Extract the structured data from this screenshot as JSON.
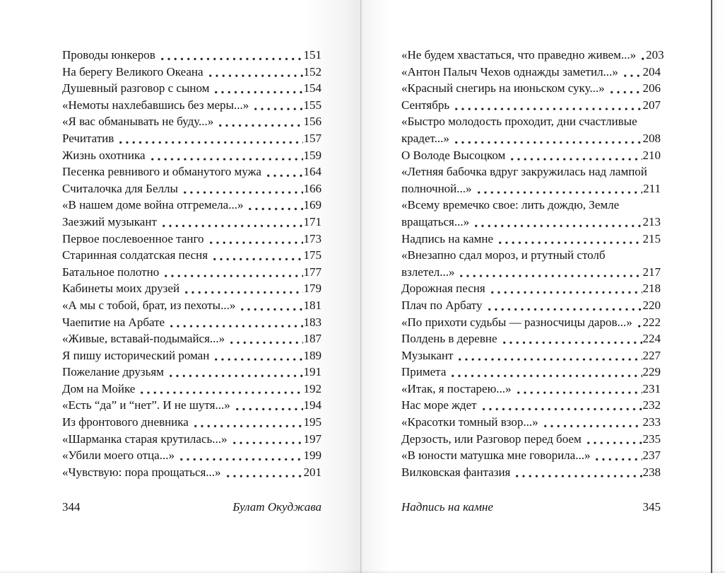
{
  "colors": {
    "page": "#ffffff",
    "text": "#141414",
    "book_edge_line": "#585858"
  },
  "left_page": {
    "entries": [
      {
        "title": "Проводы юнкеров",
        "page": "151"
      },
      {
        "title": "На берегу Великого Океана",
        "page": "152"
      },
      {
        "title": "Душевный разговор с сыном",
        "page": "154"
      },
      {
        "title": "«Немоты нахлебавшись без меры...»",
        "page": "155"
      },
      {
        "title": "«Я вас обманывать не буду...»",
        "page": "156"
      },
      {
        "title": "Речитатив",
        "page": "157"
      },
      {
        "title": "Жизнь охотника",
        "page": "159"
      },
      {
        "title": "Песенка ревнивого и обманутого мужа",
        "page": "164"
      },
      {
        "title": "Считалочка для Беллы",
        "page": "166"
      },
      {
        "title": "«В нашем доме война отгремела...»",
        "page": "169"
      },
      {
        "title": "Заезжий музыкант",
        "page": "171"
      },
      {
        "title": "Первое послевоенное танго",
        "page": "173"
      },
      {
        "title": "Старинная солдатская песня",
        "page": "175"
      },
      {
        "title": "Батальное полотно",
        "page": "177"
      },
      {
        "title": "Кабинеты моих друзей",
        "page": "179"
      },
      {
        "title": "«А мы с тобой, брат, из пехоты...»",
        "page": "181"
      },
      {
        "title": "Чаепитие на Арбате",
        "page": "183"
      },
      {
        "title": "«Живые, вставай-подымайся...»",
        "page": "187"
      },
      {
        "title": "Я пишу исторический роман",
        "page": "189"
      },
      {
        "title": "Пожелание друзьям",
        "page": "191"
      },
      {
        "title": "Дом на Мойке",
        "page": "192"
      },
      {
        "title": "«Есть “да” и “нет”. И не шутя...»",
        "page": "194"
      },
      {
        "title": "Из фронтового дневника",
        "page": "195"
      },
      {
        "title": "«Шарманка старая крутилась...»",
        "page": "197"
      },
      {
        "title": "«Убили моего отца...»",
        "page": "199"
      },
      {
        "title": "«Чувствую: пора прощаться...»",
        "page": "201"
      }
    ],
    "footer": {
      "page_number": "344",
      "running_title": "Булат Окуджава"
    }
  },
  "right_page": {
    "entries": [
      {
        "title": "«Не будем хвастаться, что праведно живем...»",
        "page": "203"
      },
      {
        "title": "«Антон Палыч Чехов однажды заметил...»",
        "page": "204"
      },
      {
        "title": "«Красный снегирь на июньском суку...»",
        "page": "206"
      },
      {
        "title": "Сентябрь",
        "page": "207"
      },
      {
        "title": "«Быстро молодость проходит, дни счастливые",
        "title2": "крадет...»",
        "page": "208"
      },
      {
        "title": "О Володе Высоцком",
        "page": "210"
      },
      {
        "title": "«Летняя бабочка вдруг закружилась над лампой",
        "title2": "полночной...»",
        "page": "211"
      },
      {
        "title": "«Всему времечко свое: лить дождю, Земле",
        "title2": "вращаться...»",
        "page": "213"
      },
      {
        "title": "Надпись на камне",
        "page": "215"
      },
      {
        "title": "«Внезапно сдал мороз, и ртутный столб",
        "title2": "взлетел...»",
        "page": "217"
      },
      {
        "title": "Дорожная песня",
        "page": "218"
      },
      {
        "title": "Плач по Арбату",
        "page": "220"
      },
      {
        "title": "«По прихоти судьбы — разносчицы даров...»",
        "page": "222"
      },
      {
        "title": "Полдень в деревне",
        "page": "224"
      },
      {
        "title": "Музыкант",
        "page": "227"
      },
      {
        "title": "Примета",
        "page": "229"
      },
      {
        "title": "«Итак, я постарею...»",
        "page": "231"
      },
      {
        "title": "Нас море ждет",
        "page": "232"
      },
      {
        "title": "«Красотки томный взор...»",
        "page": "233"
      },
      {
        "title": "Дерзость, или Разговор перед боем",
        "page": "235"
      },
      {
        "title": "«В юности матушка мне говорила...»",
        "page": "237"
      },
      {
        "title": "Вилковская фантазия",
        "page": "238"
      }
    ],
    "footer": {
      "running_title": "Надпись на камне",
      "page_number": "345"
    }
  }
}
